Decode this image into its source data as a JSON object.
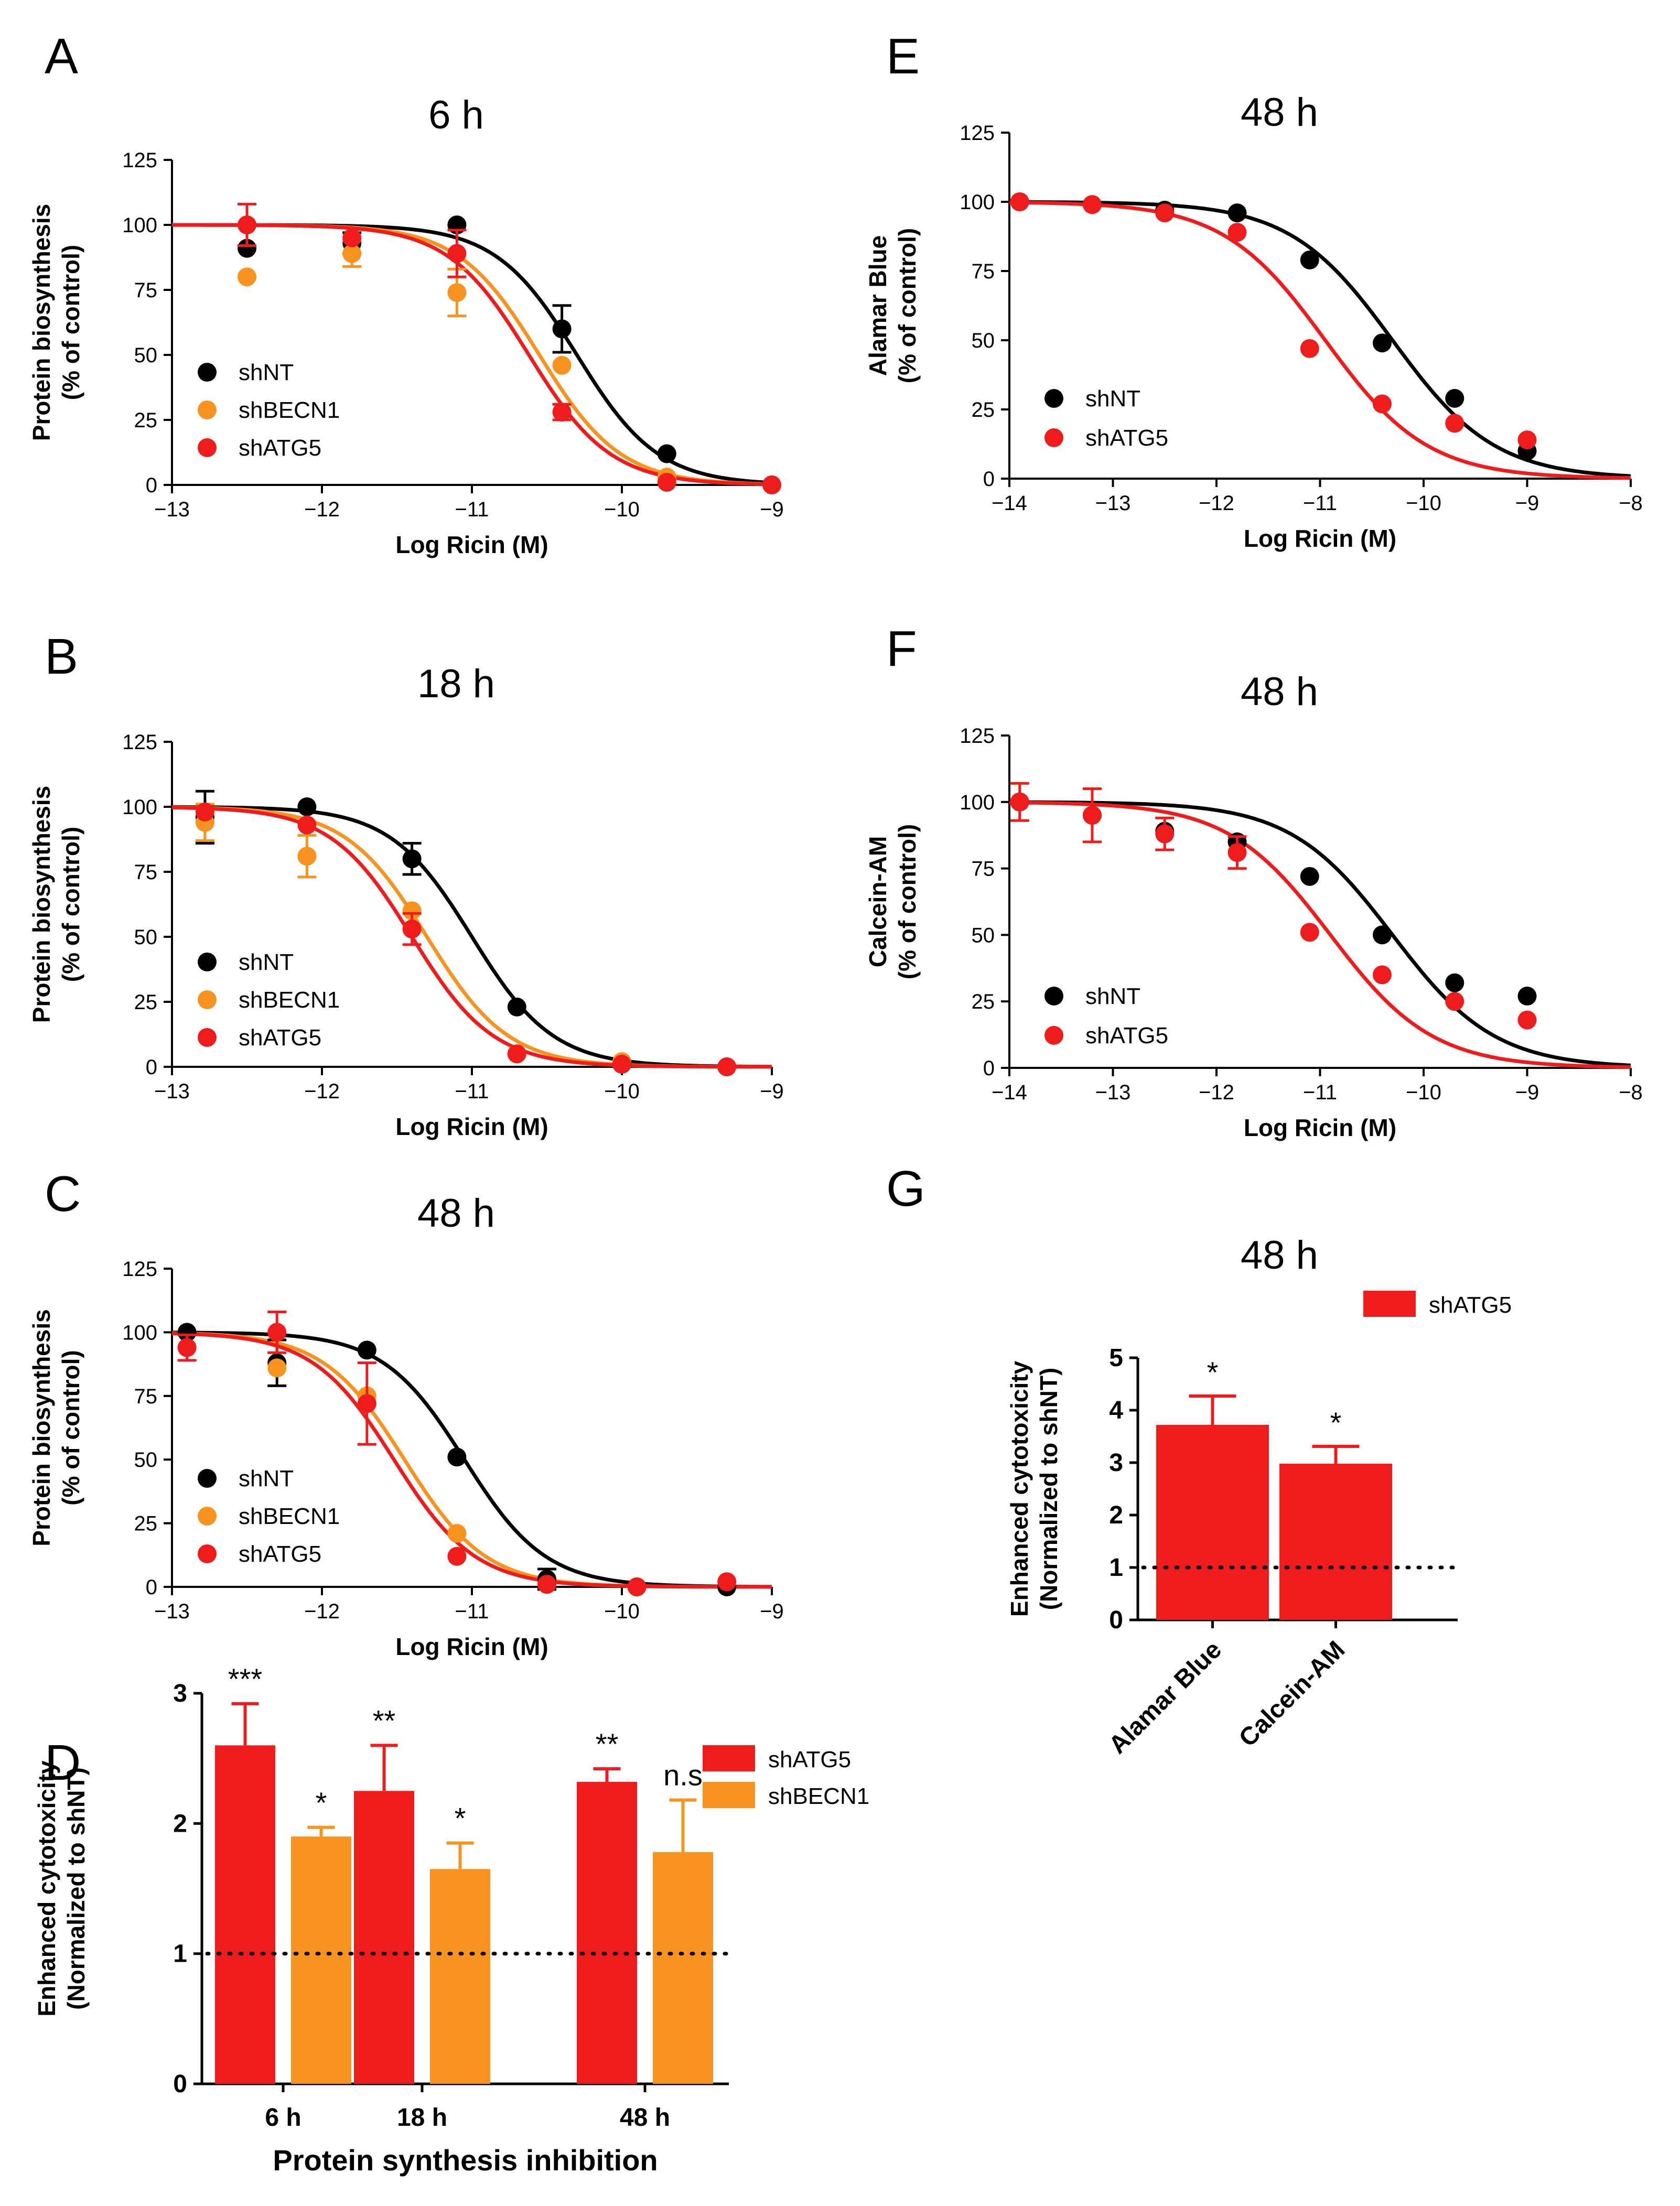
{
  "figure": {
    "background": "#ffffff"
  },
  "colors": {
    "shNT": "#000000",
    "shBECN1": "#f7931e",
    "shATG5": "#ee1c1c"
  },
  "chart_data": [
    {
      "id": "A",
      "letter": "A",
      "type": "scatter",
      "title": "6 h",
      "xlabel": "Log Ricin (M)",
      "ylabel": [
        "Protein biosynthesis",
        "(% of control)"
      ],
      "xlim": [
        -13,
        -9
      ],
      "ylim": [
        0,
        125
      ],
      "xticks": [
        -13,
        -12,
        -11,
        -10,
        -9
      ],
      "xtick_labels": [
        "−13",
        "−12",
        "−11",
        "−10",
        "−9"
      ],
      "yticks": [
        0,
        25,
        50,
        75,
        100,
        125
      ],
      "ytick_labels": [
        "0",
        "25",
        "50",
        "75",
        "100",
        "125"
      ],
      "series": [
        {
          "name": "shNT",
          "color": "#000000",
          "x": [
            -12.5,
            -11.8,
            -11.1,
            -10.4,
            -9.7,
            -9.0
          ],
          "y": [
            91,
            93,
            100,
            60,
            12,
            0
          ],
          "err": [
            0,
            4,
            0,
            9,
            0,
            0
          ],
          "ic50": -10.3
        },
        {
          "name": "shBECN1",
          "color": "#f7931e",
          "x": [
            -12.5,
            -11.8,
            -11.1,
            -10.4,
            -9.7,
            -9.0
          ],
          "y": [
            80,
            89,
            74,
            46,
            3,
            0
          ],
          "err": [
            0,
            5,
            9,
            0,
            0,
            0
          ],
          "ic50": -10.55
        },
        {
          "name": "shATG5",
          "color": "#ee1c1c",
          "x": [
            -12.5,
            -11.8,
            -11.1,
            -10.4,
            -9.7,
            -9.0
          ],
          "y": [
            100,
            95,
            89,
            28,
            1,
            0
          ],
          "err": [
            8,
            0,
            9,
            3,
            0,
            0
          ],
          "ic50": -10.62
        }
      ],
      "legend": [
        "shNT",
        "shBECN1",
        "shATG5"
      ]
    },
    {
      "id": "B",
      "letter": "B",
      "type": "scatter",
      "title": "18 h",
      "xlabel": "Log Ricin (M)",
      "ylabel": [
        "Protein biosynthesis",
        "(% of control)"
      ],
      "xlim": [
        -13,
        -9
      ],
      "ylim": [
        0,
        125
      ],
      "xticks": [
        -13,
        -12,
        -11,
        -10,
        -9
      ],
      "xtick_labels": [
        "−13",
        "−12",
        "−11",
        "−10",
        "−9"
      ],
      "yticks": [
        0,
        25,
        50,
        75,
        100,
        125
      ],
      "ytick_labels": [
        "0",
        "25",
        "50",
        "75",
        "100",
        "125"
      ],
      "series": [
        {
          "name": "shNT",
          "color": "#000000",
          "x": [
            -12.78,
            -12.1,
            -11.4,
            -10.7,
            -10.0,
            -9.3
          ],
          "y": [
            96,
            100,
            80,
            23,
            1,
            0
          ],
          "err": [
            10,
            0,
            6,
            0,
            0,
            0
          ],
          "ic50": -11.0
        },
        {
          "name": "shBECN1",
          "color": "#f7931e",
          "x": [
            -12.78,
            -12.1,
            -11.4,
            -10.7,
            -10.0,
            -9.3
          ],
          "y": [
            94,
            81,
            60,
            5,
            2,
            0
          ],
          "err": [
            7,
            8,
            0,
            0,
            0,
            0
          ],
          "ic50": -11.3
        },
        {
          "name": "shATG5",
          "color": "#ee1c1c",
          "x": [
            -12.78,
            -12.1,
            -11.4,
            -10.7,
            -10.0,
            -9.3
          ],
          "y": [
            98,
            93,
            53,
            5,
            1,
            0
          ],
          "err": [
            0,
            0,
            6,
            0,
            0,
            0
          ],
          "ic50": -11.4
        }
      ],
      "legend": [
        "shNT",
        "shBECN1",
        "shATG5"
      ]
    },
    {
      "id": "C",
      "letter": "C",
      "type": "scatter",
      "title": "48 h",
      "xlabel": "Log Ricin (M)",
      "ylabel": [
        "Protein biosynthesis",
        "(% of control)"
      ],
      "xlim": [
        -13,
        -9
      ],
      "ylim": [
        0,
        125
      ],
      "xticks": [
        -13,
        -12,
        -11,
        -10,
        -9
      ],
      "xtick_labels": [
        "−13",
        "−12",
        "−11",
        "−10",
        "−9"
      ],
      "yticks": [
        0,
        25,
        50,
        75,
        100,
        125
      ],
      "ytick_labels": [
        "0",
        "25",
        "50",
        "75",
        "100",
        "125"
      ],
      "series": [
        {
          "name": "shNT",
          "color": "#000000",
          "x": [
            -12.9,
            -12.3,
            -11.7,
            -11.1,
            -10.5,
            -9.9,
            -9.3
          ],
          "y": [
            100,
            88,
            93,
            51,
            3,
            0,
            0
          ],
          "err": [
            0,
            9,
            0,
            0,
            4,
            0,
            0
          ],
          "ic50": -11.05
        },
        {
          "name": "shBECN1",
          "color": "#f7931e",
          "x": [
            -12.9,
            -12.3,
            -11.7,
            -11.1,
            -10.5,
            -9.9,
            -9.3
          ],
          "y": [
            94,
            86,
            75,
            21,
            1,
            0,
            2
          ],
          "err": [
            0,
            0,
            0,
            0,
            0,
            0,
            0
          ],
          "ic50": -11.45
        },
        {
          "name": "shATG5",
          "color": "#ee1c1c",
          "x": [
            -12.9,
            -12.3,
            -11.7,
            -11.1,
            -10.5,
            -9.9,
            -9.3
          ],
          "y": [
            94,
            100,
            72,
            12,
            1,
            0,
            2
          ],
          "err": [
            5,
            8,
            16,
            0,
            0,
            0,
            0
          ],
          "ic50": -11.52
        }
      ],
      "legend": [
        "shNT",
        "shBECN1",
        "shATG5"
      ]
    },
    {
      "id": "E",
      "letter": "E",
      "type": "scatter",
      "title": "48 h",
      "xlabel": "Log Ricin (M)",
      "ylabel": [
        "Alamar Blue",
        "(% of control)"
      ],
      "xlim": [
        -14,
        -8
      ],
      "ylim": [
        0,
        125
      ],
      "xticks": [
        -14,
        -13,
        -12,
        -11,
        -10,
        -9,
        -8
      ],
      "xtick_labels": [
        "−14",
        "−13",
        "−12",
        "−11",
        "−10",
        "−9",
        "−8"
      ],
      "yticks": [
        0,
        25,
        50,
        75,
        100,
        125
      ],
      "ytick_labels": [
        "0",
        "25",
        "50",
        "75",
        "100",
        "125"
      ],
      "series": [
        {
          "name": "shNT",
          "color": "#000000",
          "x": [
            -13.9,
            -13.2,
            -12.5,
            -11.8,
            -11.1,
            -10.4,
            -9.7,
            -9.0
          ],
          "y": [
            100,
            99,
            97,
            96,
            79,
            49,
            29,
            10
          ],
          "err": [
            0,
            0,
            0,
            0,
            0,
            0,
            0,
            0
          ],
          "ic50": -10.3,
          "hill": 0.55
        },
        {
          "name": "shATG5",
          "color": "#ee1c1c",
          "x": [
            -13.9,
            -13.2,
            -12.5,
            -11.8,
            -11.1,
            -10.4,
            -9.7,
            -9.0
          ],
          "y": [
            100,
            99,
            96,
            89,
            47,
            27,
            20,
            14
          ],
          "err": [
            0,
            0,
            0,
            0,
            0,
            0,
            0,
            0
          ],
          "ic50": -10.95,
          "hill": 0.55
        }
      ],
      "legend": [
        "shNT",
        "shATG5"
      ]
    },
    {
      "id": "F",
      "letter": "F",
      "type": "scatter",
      "title": "48 h",
      "xlabel": "Log Ricin (M)",
      "ylabel": [
        "Calcein-AM",
        "(% of control)"
      ],
      "xlim": [
        -14,
        -8
      ],
      "ylim": [
        0,
        125
      ],
      "xticks": [
        -14,
        -13,
        -12,
        -11,
        -10,
        -9,
        -8
      ],
      "xtick_labels": [
        "−14",
        "−13",
        "−12",
        "−11",
        "−10",
        "−9",
        "−8"
      ],
      "yticks": [
        0,
        25,
        50,
        75,
        100,
        125
      ],
      "ytick_labels": [
        "0",
        "25",
        "50",
        "75",
        "100",
        "125"
      ],
      "series": [
        {
          "name": "shNT",
          "color": "#000000",
          "x": [
            -13.9,
            -13.2,
            -12.5,
            -11.8,
            -11.1,
            -10.4,
            -9.7,
            -9.0
          ],
          "y": [
            100,
            95,
            89,
            85,
            72,
            50,
            32,
            27
          ],
          "err": [
            0,
            0,
            0,
            0,
            0,
            0,
            0,
            0
          ],
          "ic50": -10.3,
          "hill": 0.55
        },
        {
          "name": "shATG5",
          "color": "#ee1c1c",
          "x": [
            -13.9,
            -13.2,
            -12.5,
            -11.8,
            -11.1,
            -10.4,
            -9.7,
            -9.0
          ],
          "y": [
            100,
            95,
            88,
            81,
            51,
            35,
            25,
            18
          ],
          "err": [
            7,
            10,
            6,
            6,
            0,
            0,
            0,
            0
          ],
          "ic50": -10.9,
          "hill": 0.55
        }
      ],
      "legend": [
        "shNT",
        "shATG5"
      ]
    },
    {
      "id": "D",
      "letter": "D",
      "type": "bar",
      "title": "",
      "xlabel": "Protein synthesis inhibition",
      "ylabel": [
        "Enhanced cytotoxicity",
        "(Normalized to shNT)"
      ],
      "ylim": [
        0,
        3
      ],
      "yticks": [
        0,
        1,
        2,
        3
      ],
      "ytick_labels": [
        "0",
        "1",
        "2",
        "3"
      ],
      "categories": [
        "6 h",
        "18 h",
        "48 h"
      ],
      "series": [
        {
          "name": "shATG5",
          "color": "#ee1c1c",
          "values": [
            2.6,
            2.25,
            2.32
          ],
          "err": [
            0.32,
            0.35,
            0.1
          ],
          "stars": [
            "***",
            "**",
            "**"
          ]
        },
        {
          "name": "shBECN1",
          "color": "#f7931e",
          "values": [
            1.9,
            1.65,
            1.78
          ],
          "err": [
            0.07,
            0.2,
            0.4
          ],
          "stars": [
            "*",
            "*",
            "n.s"
          ]
        }
      ],
      "reference_line": 1,
      "legend": [
        "shATG5",
        "shBECN1"
      ]
    },
    {
      "id": "G",
      "letter": "G",
      "type": "bar",
      "title": "48 h",
      "xlabel": "",
      "ylabel": [
        "Enhanced cytotoxicity",
        "(Normalized to shNT)"
      ],
      "ylim": [
        0,
        5
      ],
      "yticks": [
        0,
        1,
        2,
        3,
        4,
        5
      ],
      "ytick_labels": [
        "0",
        "1",
        "2",
        "3",
        "4",
        "5"
      ],
      "categories": [
        "Alamar Blue",
        "Calcein-AM"
      ],
      "series": [
        {
          "name": "shATG5",
          "color": "#ee1c1c",
          "values": [
            3.72,
            2.98
          ],
          "err": [
            0.55,
            0.33
          ],
          "stars": [
            "*",
            "*"
          ]
        }
      ],
      "reference_line": 1,
      "legend": [
        "shATG5"
      ]
    }
  ]
}
